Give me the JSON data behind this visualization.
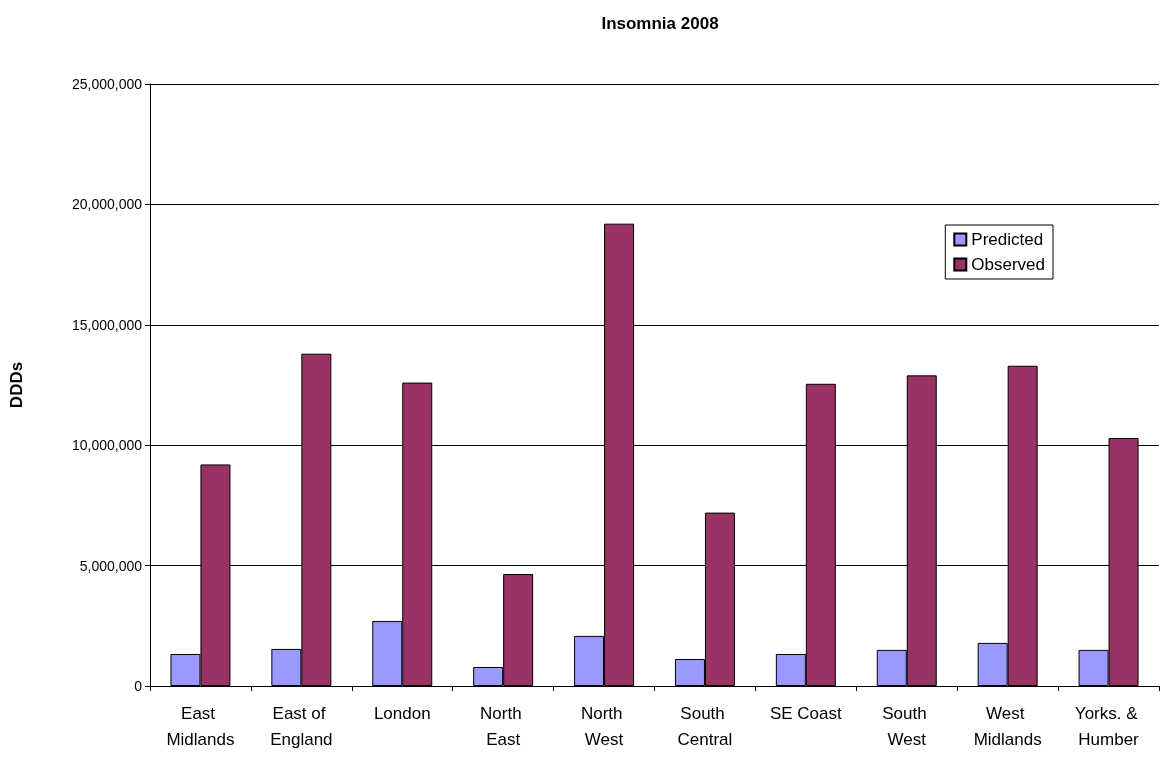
{
  "chart_data": {
    "type": "bar",
    "title": "Insomnia 2008",
    "ylabel": "DDDs",
    "categories": [
      "East Midlands",
      "East of England",
      "London",
      "North East",
      "North West",
      "South Central",
      "SE Coast",
      "South West",
      "West Midlands",
      "Yorks. & Humber"
    ],
    "series": [
      {
        "name": "Predicted",
        "color": "#9999ff",
        "values": [
          1330000,
          1540000,
          2700000,
          790000,
          2080000,
          1120000,
          1330000,
          1500000,
          1790000,
          1500000
        ]
      },
      {
        "name": "Observed",
        "color": "#993366",
        "values": [
          9200000,
          13800000,
          12600000,
          4650000,
          19200000,
          7200000,
          12550000,
          12900000,
          13300000,
          10300000
        ]
      }
    ],
    "ylim": [
      0,
      25000000
    ],
    "yticks": [
      0,
      {
        "value": 5000000,
        "label": "5,000,000"
      },
      {
        "value": 10000000,
        "label": "10,000,000"
      },
      {
        "value": 15000000,
        "label": "15,000,000"
      },
      {
        "value": 20000000,
        "label": "20,000,000"
      },
      {
        "value": 25000000,
        "label": "25,000,000"
      }
    ],
    "grid": "y",
    "legend": "top right"
  }
}
